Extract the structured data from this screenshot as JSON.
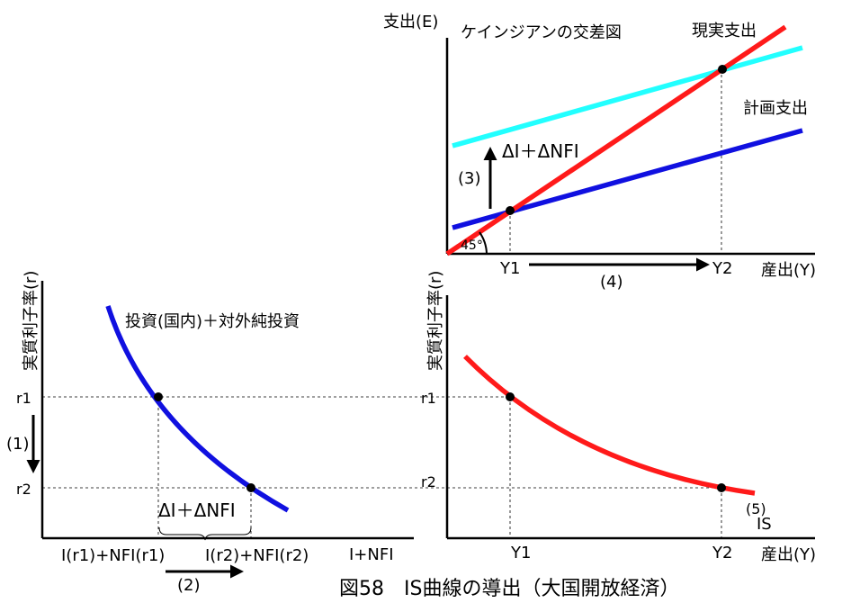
{
  "caption": "図58　IS曲線の導出（大国開放経済）",
  "keynesian": {
    "y_axis_label": "支出(E)",
    "x_axis_label": "産出(Y)",
    "title": "ケインジアンの交差図",
    "actual_label": "現実支出",
    "planned_label": "計画支出",
    "angle_label": "45°",
    "shift_label": "ΔI＋ΔNFI",
    "step3": "(3)",
    "step4": "(4)",
    "y1": "Y1",
    "y2": "Y2",
    "colors": {
      "actual": "#ff1a1a",
      "planned_low": "#1010e0",
      "planned_high": "#22ffff"
    }
  },
  "investment": {
    "y_axis_label": "実質利子率(r)",
    "x_axis_label": "I+NFI",
    "curve_label": "投資(国内)＋対外純投資",
    "r1": "r1",
    "r2": "r2",
    "step1": "(1)",
    "step2": "(2)",
    "x_r1": "I(r1)+NFI(r1)",
    "x_r2": "I(r2)+NFI(r2)",
    "brace_label": "ΔI＋ΔNFI",
    "color": "#1010e0"
  },
  "is_panel": {
    "y_axis_label": "実質利子率(r)",
    "x_axis_label": "産出(Y)",
    "r1": "r1",
    "r2": "r2",
    "y1": "Y1",
    "y2": "Y2",
    "step5": "(5)",
    "curve_label": "IS",
    "color": "#ff1a1a"
  }
}
